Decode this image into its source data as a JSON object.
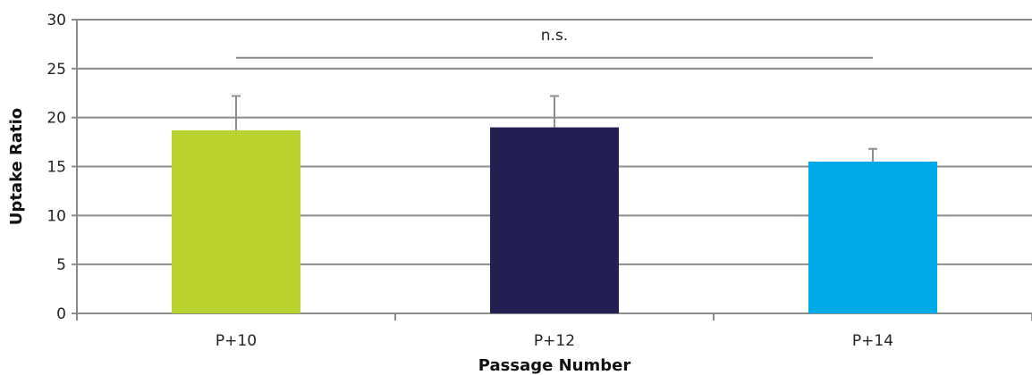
{
  "chart_data": {
    "type": "bar",
    "categories": [
      "P+10",
      "P+12",
      "P+14"
    ],
    "values": [
      18.7,
      19.0,
      15.5
    ],
    "errors": [
      3.5,
      3.2,
      1.3
    ],
    "colors": [
      "#bad330",
      "#231f53",
      "#00aae8"
    ],
    "xlabel": "Passage Number",
    "ylabel": "Uptake Ratio",
    "ylim": [
      0,
      30
    ],
    "yticks": [
      0,
      5,
      10,
      15,
      20,
      25,
      30
    ],
    "grid": true,
    "legend": "none",
    "annotation": {
      "text": "n.s.",
      "y": 26.1,
      "from_category": "P+10",
      "to_category": "P+14"
    }
  }
}
